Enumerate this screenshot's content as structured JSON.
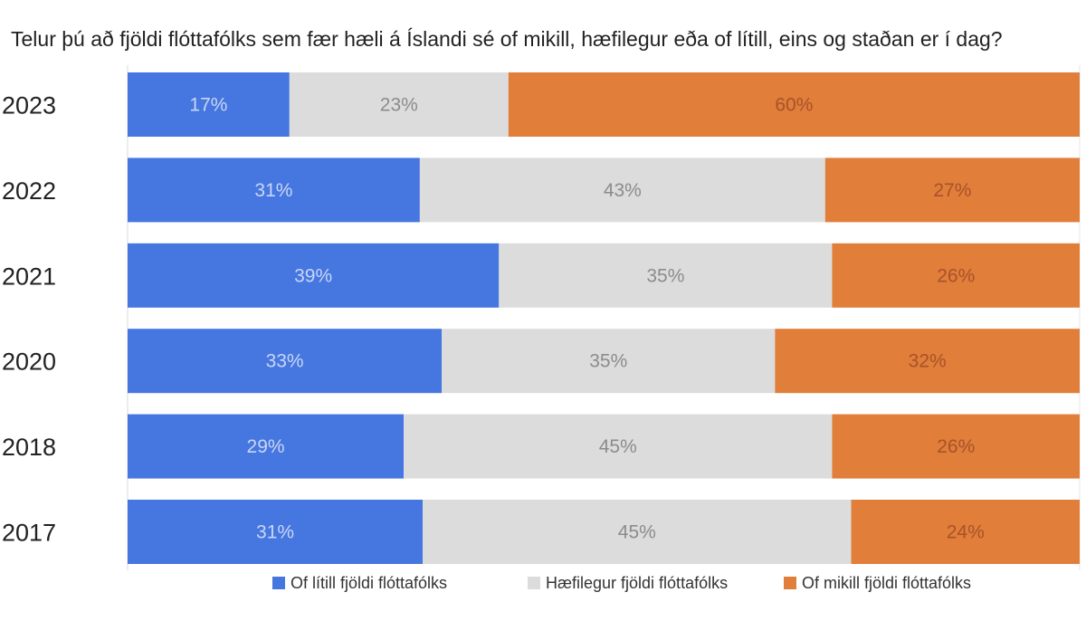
{
  "chart_data": {
    "type": "bar",
    "orientation": "horizontal",
    "stacked": true,
    "title": "Telur þú að fjöldi flóttafólks sem fær hæli á Íslandi sé of mikill, hæfilegur eða of lítill, eins og staðan er í dag?",
    "categories": [
      "2023",
      "2022",
      "2021",
      "2020",
      "2018",
      "2017"
    ],
    "series": [
      {
        "name": "Of lítill fjöldi flóttafólks",
        "values": [
          17,
          31,
          39,
          33,
          29,
          31
        ],
        "color": "#4677E0",
        "label_color": "#C9D6F5"
      },
      {
        "name": "Hæfilegur fjöldi flóttafólks",
        "values": [
          23,
          43,
          35,
          35,
          45,
          45
        ],
        "color": "#DCDCDC",
        "label_color": "#8C8C8C"
      },
      {
        "name": "Of mikill fjöldi flóttafólks",
        "values": [
          60,
          27,
          26,
          32,
          26,
          24
        ],
        "color": "#E07E3A",
        "label_color": "#A9522A"
      }
    ],
    "value_suffix": "%",
    "grid": false,
    "legend_position": "bottom"
  }
}
